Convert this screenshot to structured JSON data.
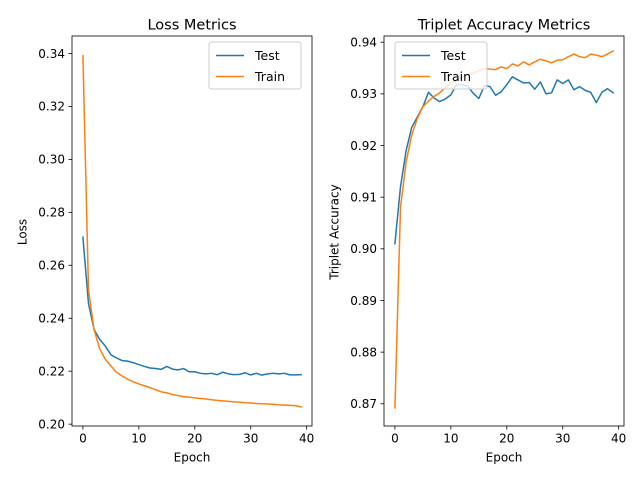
{
  "colors": {
    "test": "#1f77b4",
    "train": "#ff7f0e",
    "axes": "#000000",
    "legend_border": "#cccccc",
    "background": "#ffffff"
  },
  "chart_data": [
    {
      "type": "line",
      "title": "Loss Metrics",
      "xlabel": "Epoch",
      "ylabel": "Loss",
      "xlim": [
        -1.95,
        40.95
      ],
      "ylim": [
        0.1993,
        0.3466
      ],
      "xticks": [
        0,
        10,
        20,
        30,
        40
      ],
      "xtick_labels": [
        "0",
        "10",
        "20",
        "30",
        "40"
      ],
      "yticks": [
        0.2,
        0.22,
        0.24,
        0.26,
        0.28,
        0.3,
        0.32,
        0.34
      ],
      "ytick_labels": [
        "0.20",
        "0.22",
        "0.24",
        "0.26",
        "0.28",
        "0.30",
        "0.32",
        "0.34"
      ],
      "legend_position": "top-right",
      "grid": false,
      "series": [
        {
          "name": "Test",
          "color": "#1f77b4",
          "x": [
            0,
            1,
            2,
            3,
            4,
            5,
            6,
            7,
            8,
            9,
            10,
            11,
            12,
            13,
            14,
            15,
            16,
            17,
            18,
            19,
            20,
            21,
            22,
            23,
            24,
            25,
            26,
            27,
            28,
            29,
            30,
            31,
            32,
            33,
            34,
            35,
            36,
            37,
            38,
            39
          ],
          "y": [
            0.2706,
            0.2455,
            0.2357,
            0.232,
            0.2295,
            0.2262,
            0.225,
            0.224,
            0.2238,
            0.2232,
            0.2225,
            0.2218,
            0.2212,
            0.221,
            0.2207,
            0.2218,
            0.2208,
            0.2205,
            0.221,
            0.2198,
            0.2198,
            0.2192,
            0.219,
            0.2192,
            0.2187,
            0.2196,
            0.219,
            0.2187,
            0.2188,
            0.2194,
            0.2186,
            0.2192,
            0.2185,
            0.219,
            0.2192,
            0.219,
            0.2192,
            0.2186,
            0.2186,
            0.2187
          ]
        },
        {
          "name": "Train",
          "color": "#ff7f0e",
          "x": [
            0,
            1,
            2,
            3,
            4,
            5,
            6,
            7,
            8,
            9,
            10,
            11,
            12,
            13,
            14,
            15,
            16,
            17,
            18,
            19,
            20,
            21,
            22,
            23,
            24,
            25,
            26,
            27,
            28,
            29,
            30,
            31,
            32,
            33,
            34,
            35,
            36,
            37,
            38,
            39
          ],
          "y": [
            0.3392,
            0.2508,
            0.2356,
            0.2285,
            0.2245,
            0.222,
            0.2196,
            0.2182,
            0.217,
            0.216,
            0.2152,
            0.2145,
            0.2138,
            0.213,
            0.2122,
            0.2118,
            0.2112,
            0.2108,
            0.2104,
            0.2102,
            0.2099,
            0.2097,
            0.2095,
            0.2092,
            0.209,
            0.2088,
            0.2086,
            0.2084,
            0.2083,
            0.2081,
            0.208,
            0.2078,
            0.2077,
            0.2076,
            0.2075,
            0.2073,
            0.2072,
            0.2071,
            0.207,
            0.2065
          ]
        }
      ]
    },
    {
      "type": "line",
      "title": "Triplet Accuracy Metrics",
      "xlabel": "Epoch",
      "ylabel": "Triplet Accuracy",
      "xlim": [
        -1.95,
        40.95
      ],
      "ylim": [
        0.8657,
        0.9412
      ],
      "xticks": [
        0,
        10,
        20,
        30,
        40
      ],
      "xtick_labels": [
        "0",
        "10",
        "20",
        "30",
        "40"
      ],
      "yticks": [
        0.87,
        0.88,
        0.89,
        0.9,
        0.91,
        0.92,
        0.93,
        0.94
      ],
      "ytick_labels": [
        "0.87",
        "0.88",
        "0.89",
        "0.90",
        "0.91",
        "0.92",
        "0.93",
        "0.94"
      ],
      "legend_position": "top-left",
      "grid": false,
      "series": [
        {
          "name": "Test",
          "color": "#1f77b4",
          "x": [
            0,
            1,
            2,
            3,
            4,
            5,
            6,
            7,
            8,
            9,
            10,
            11,
            12,
            13,
            14,
            15,
            16,
            17,
            18,
            19,
            20,
            21,
            22,
            23,
            24,
            25,
            26,
            27,
            28,
            29,
            30,
            31,
            32,
            33,
            34,
            35,
            36,
            37,
            38,
            39
          ],
          "y": [
            0.901,
            0.912,
            0.919,
            0.9235,
            0.9255,
            0.9275,
            0.9303,
            0.9292,
            0.9285,
            0.929,
            0.9298,
            0.9318,
            0.9318,
            0.9315,
            0.9301,
            0.9291,
            0.9316,
            0.9314,
            0.9297,
            0.9304,
            0.9318,
            0.9333,
            0.9327,
            0.9321,
            0.9322,
            0.9309,
            0.9323,
            0.93,
            0.9302,
            0.9327,
            0.932,
            0.9327,
            0.9308,
            0.9314,
            0.9307,
            0.9303,
            0.9283,
            0.9303,
            0.931,
            0.9302
          ]
        },
        {
          "name": "Train",
          "color": "#ff7f0e",
          "x": [
            0,
            1,
            2,
            3,
            4,
            5,
            6,
            7,
            8,
            9,
            10,
            11,
            12,
            13,
            14,
            15,
            16,
            17,
            18,
            19,
            20,
            21,
            22,
            23,
            24,
            25,
            26,
            27,
            28,
            29,
            30,
            31,
            32,
            33,
            34,
            35,
            36,
            37,
            38,
            39
          ],
          "y": [
            0.8692,
            0.908,
            0.9168,
            0.922,
            0.9252,
            0.9275,
            0.9286,
            0.9295,
            0.9302,
            0.9312,
            0.932,
            0.9326,
            0.9332,
            0.9336,
            0.934,
            0.9345,
            0.9349,
            0.9348,
            0.9347,
            0.9352,
            0.9349,
            0.9358,
            0.9354,
            0.9362,
            0.9356,
            0.9362,
            0.9367,
            0.9364,
            0.936,
            0.9365,
            0.9366,
            0.9372,
            0.9377,
            0.9372,
            0.937,
            0.9377,
            0.9375,
            0.9372,
            0.9377,
            0.9383
          ]
        }
      ]
    }
  ]
}
